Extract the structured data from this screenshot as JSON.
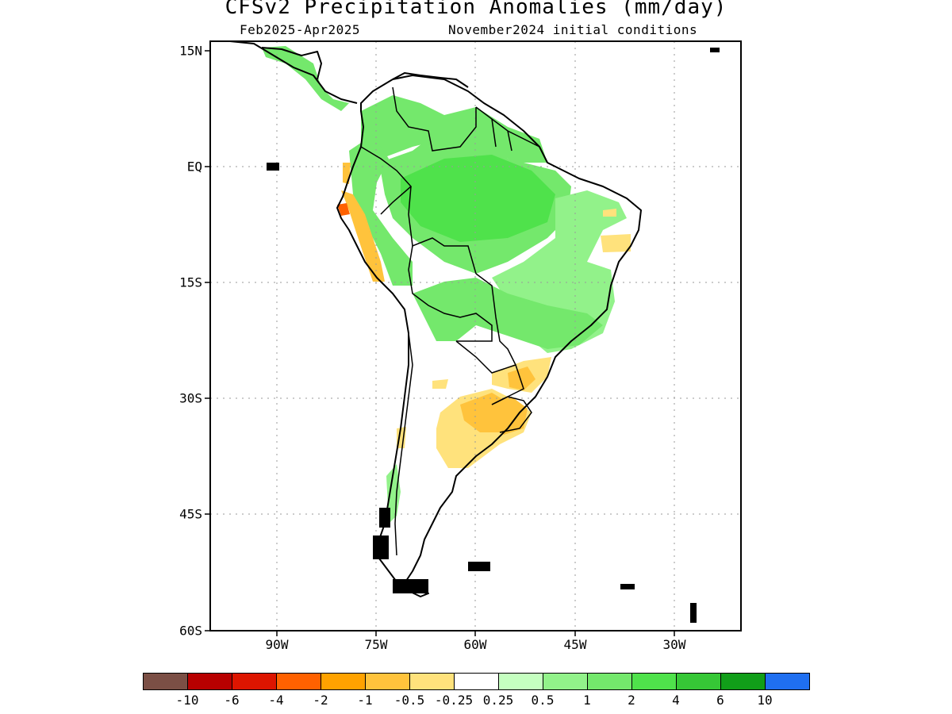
{
  "title": "CFSv2 Precipitation Anomalies (mm/day)",
  "subtitle_left": "Feb2025-Apr2025",
  "subtitle_right": "November2024 initial conditions",
  "lat_labels": [
    "15N",
    "EQ",
    "15S",
    "30S",
    "45S",
    "60S"
  ],
  "lon_labels": [
    "90W",
    "75W",
    "60W",
    "45W",
    "30W"
  ],
  "colorbar": {
    "labels": [
      "-10",
      "-6",
      "-4",
      "-2",
      "-1",
      "-0.5",
      "-0.25",
      "0.25",
      "0.5",
      "1",
      "2",
      "4",
      "6",
      "10"
    ],
    "colors": [
      "#7b4f45",
      "#b80000",
      "#dd1500",
      "#ff6100",
      "#ffa200",
      "#ffc33c",
      "#ffe27c",
      "#ffffff",
      "#c5ffc0",
      "#92f28a",
      "#74e86c",
      "#4fe24b",
      "#36c736",
      "#119e19",
      "#1f6ff0"
    ]
  },
  "map": {
    "lat_range": [
      "15N",
      "60S"
    ],
    "lon_range": [
      "~99W",
      "~20W"
    ],
    "grid": "dotted",
    "colors": {
      "land_outline": "#000000",
      "green_light": "#92f28a",
      "green_mid": "#74e86c",
      "green_dark": "#4fe24b",
      "orange_light": "#ffe27c",
      "orange_mid": "#ffc33c",
      "orange_dark": "#ffa200",
      "red_orange": "#ff6100"
    }
  }
}
